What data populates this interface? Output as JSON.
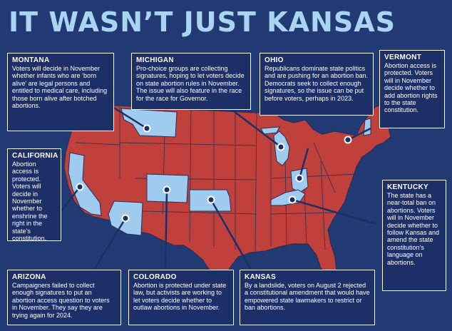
{
  "title": "IT WASN’T JUST KANSAS",
  "colors": {
    "background": "#213a73",
    "restricted_states": "#c0403c",
    "highlighted_states": "#9ecbee",
    "state_border": "#2b2f55",
    "title": "#a9d4f2",
    "card_background": "#1c2f66"
  },
  "states": [
    {
      "name": "Montana",
      "color": "light-blue"
    },
    {
      "name": "Michigan",
      "color": "light-blue"
    },
    {
      "name": "Ohio",
      "color": "light-blue"
    },
    {
      "name": "Vermont",
      "color": "light-blue"
    },
    {
      "name": "California",
      "color": "light-blue"
    },
    {
      "name": "Kentucky",
      "color": "light-blue"
    },
    {
      "name": "Arizona",
      "color": "light-blue"
    },
    {
      "name": "Colorado",
      "color": "light-blue"
    },
    {
      "name": "Kansas",
      "color": "light-blue"
    }
  ],
  "callouts": {
    "montana": {
      "heading": "MONTANA",
      "body": "Voters will decide in November whether infants who are ‘born alive’ are legal persons and entitled to medical care, including those born alive after botched abortions."
    },
    "michigan": {
      "heading": "MICHIGAN",
      "body": "Pro-choice groups are collecting signatures, hoping to let voters decide on state abortion rules in November. The issue will also feature in the race for the race for Governor."
    },
    "ohio": {
      "heading": "OHIO",
      "body": "Republicans dominate state politics and are pushing for an abortion ban. Democrats seek to collect enough signatures, so the issue can be put before voters, perhaps in 2023."
    },
    "vermont": {
      "heading": "VERMONT",
      "body": "Abortion access is protected. Voters will in November decide whether to add abortion rights to the state constitution."
    },
    "california": {
      "heading": "CALIFORNIA",
      "body": "Abortion access is protected. Voters will decide in November whether to enshrine the right in the state’s constitution."
    },
    "kentucky": {
      "heading": "KENTUCKY",
      "body": "The state has a near-total ban on abortions. Voters will in November decide whether to follow Kansas and amend the state constitution’s language on abortions."
    },
    "arizona": {
      "heading": "ARIZONA",
      "body": "Campaigners failed to collect enough signatures to put an abortion access question to voters in November. They say they are trying again for 2024."
    },
    "colorado": {
      "heading": "COLORADO",
      "body": "Abortion is protected under state law, but activists are working to let voters decide whether to outlaw abortions in November."
    },
    "kansas": {
      "heading": "KANSAS",
      "body": "By a landslide, voters on August 2 rejected a constitutional amendment that would have empowered state lawmakers to restrict or ban abortions."
    }
  }
}
